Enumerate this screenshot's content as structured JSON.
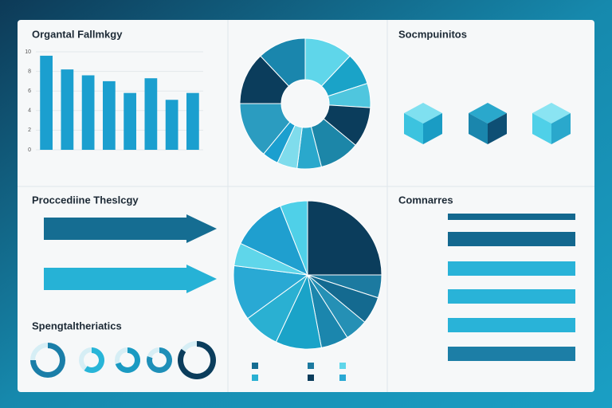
{
  "header": {
    "title": "Socmpuinitos"
  },
  "chart_data": [
    {
      "type": "bar",
      "title": "Organtal Fallmkgy",
      "categories": [
        null,
        null,
        null,
        null,
        null,
        null,
        null,
        null
      ],
      "values": [
        9.6,
        8.2,
        7.6,
        7.0,
        5.8,
        7.3,
        5.1,
        5.8
      ],
      "color": "#1b9fcf",
      "ylim": [
        0,
        10
      ],
      "yticks": [
        0,
        2,
        4,
        6,
        8,
        10
      ],
      "grid": true
    },
    {
      "type": "donut",
      "values": [
        12,
        8,
        6,
        10,
        10,
        6,
        5,
        4,
        14,
        13,
        12
      ],
      "colors": [
        "#5fd6ea",
        "#1aa3c8",
        "#4fc6de",
        "#0b3d5c",
        "#1c86a8",
        "#2aa8cc",
        "#7fdcec",
        "#1b9fcf",
        "#2b9cc0",
        "#0b3d5c",
        "#1a86ad"
      ]
    },
    {
      "type": "bar",
      "orientation": "horizontal",
      "title": "Proccediine Theslcgy",
      "values": [
        10,
        10
      ],
      "colors": [
        "#156d92",
        "#26b2d6"
      ],
      "xlim": [
        0,
        10
      ]
    },
    {
      "type": "gauge",
      "title": "Spengtaltheriatics",
      "values": [
        75,
        60,
        70,
        80,
        85
      ],
      "ylim": [
        0,
        100
      ],
      "colors": [
        "#1a7ea8",
        "#28b5d8",
        "#1a9ac2",
        "#1e8fb8",
        "#0b3d5c"
      ]
    },
    {
      "type": "pie",
      "values": [
        25,
        5,
        6,
        5,
        6,
        10,
        8,
        12,
        5,
        12,
        6
      ],
      "colors": [
        "#0b3d5c",
        "#1c7aa0",
        "#146a90",
        "#2590b5",
        "#1b86ad",
        "#1aa3c8",
        "#2ab0d2",
        "#29a9d4",
        "#5fd6ea",
        "#1f9fcf",
        "#4fd0e8"
      ]
    },
    {
      "type": "bar",
      "orientation": "horizontal",
      "title": "Comnarres",
      "values": [
        100,
        100,
        100,
        100,
        100,
        100
      ],
      "colors": [
        "#13688f",
        "#13688f",
        "#29b3d8",
        "#29b3d8",
        "#29b3d8",
        "#1c7ea6"
      ],
      "xlim": [
        0,
        100
      ]
    }
  ]
}
